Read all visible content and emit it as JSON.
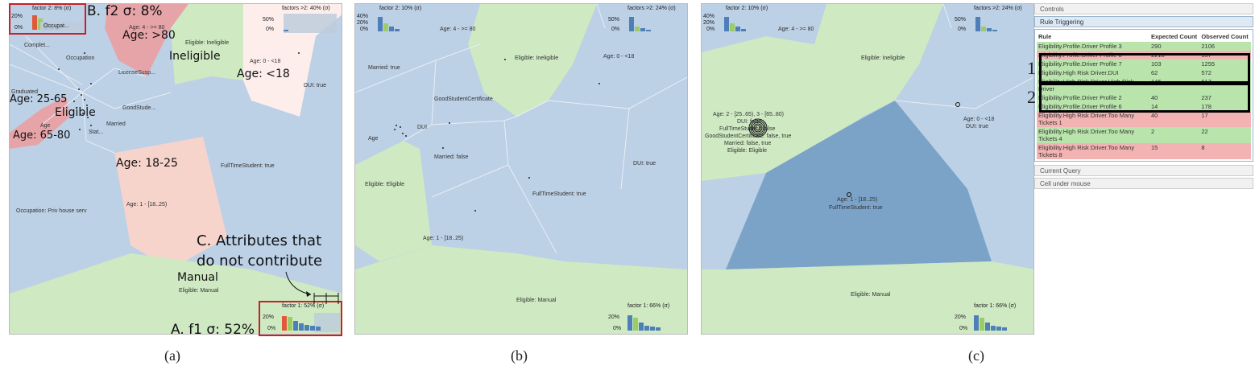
{
  "panel_a": {
    "hist_top_left": {
      "title": "factor 2: 8% (σ)",
      "y_top": "20%",
      "y_bottom": "0%",
      "bars": [
        {
          "color": "#e05a3a",
          "v": 0.9
        },
        {
          "color": "#9ccc65",
          "v": 0.7
        },
        {
          "color": "#4f7fb8",
          "v": 0.5
        },
        {
          "color": "#4f7fb8",
          "v": 0.3
        },
        {
          "color": "#4f7fb8",
          "v": 0.2
        }
      ],
      "label": "Occupat..."
    },
    "hist_top_right": {
      "title": "factors >2: 40% (σ)",
      "y_top": "50%",
      "y_bottom": "0%",
      "bars": [
        {
          "color": "#4f7fb8",
          "v": 0.1
        }
      ]
    },
    "hist_bottom_right": {
      "title": "factor 1: 52% (σ)",
      "y_top": "20%",
      "y_bottom": "0%",
      "bars": [
        {
          "color": "#e05a3a",
          "v": 0.9
        },
        {
          "color": "#9ccc65",
          "v": 0.85
        },
        {
          "color": "#4f7fb8",
          "v": 0.6
        },
        {
          "color": "#4f7fb8",
          "v": 0.45
        },
        {
          "color": "#4f7fb8",
          "v": 0.35
        },
        {
          "color": "#4f7fb8",
          "v": 0.3
        },
        {
          "color": "#4f7fb8",
          "v": 0.25
        }
      ]
    },
    "labels": {
      "occupation": "Occupation",
      "complete": "Complet...",
      "license": "LicenseSusp...",
      "graduated": "Graduated",
      "goodstude": "GoodStude...",
      "married": "Married",
      "stat": "Stat...",
      "age_small": "Age",
      "age_4": "Age: 4 - >= 80",
      "eligible_ineligible": "Eligible: Ineligible",
      "age_0": "Age: 0 - <18",
      "dui_true": "DUI: true",
      "age_1": "Age: 1 - [18..25)",
      "fulltime": "FullTimeStudent: true",
      "occupation_priv": "Occupation: Priv house serv",
      "eligible_manual": "Eligible: Manual"
    },
    "annotations": {
      "b": "B. f2 σ: 8%",
      "age80": "Age: >80",
      "ineligible": "Ineligible",
      "age18": "Age: <18",
      "age2565": "Age: 25-65",
      "eligible": "Eligible",
      "age6580": "Age: 65-80",
      "age1825": "Age: 18-25",
      "c1": "C. Attributes that",
      "c2": "do not contribute",
      "manual": "Manual",
      "a": "A. f1 σ: 52%"
    }
  },
  "panel_b": {
    "hist_top_left": {
      "title": "factor 2: 10% (σ)",
      "y_top": "40%",
      "y_mid": "20%",
      "y_bottom": "0%",
      "bars": [
        {
          "color": "#4f7fb8",
          "v": 0.9
        },
        {
          "color": "#9ccc65",
          "v": 0.5
        },
        {
          "color": "#4f7fb8",
          "v": 0.3
        },
        {
          "color": "#4f7fb8",
          "v": 0.15
        }
      ]
    },
    "hist_top_right": {
      "title": "factors >2: 24% (σ)",
      "y_top": "50%",
      "y_bottom": "0%",
      "bars": [
        {
          "color": "#4f7fb8",
          "v": 0.9
        },
        {
          "color": "#9ccc65",
          "v": 0.3
        },
        {
          "color": "#4f7fb8",
          "v": 0.2
        },
        {
          "color": "#4f7fb8",
          "v": 0.1
        }
      ]
    },
    "hist_bottom_right": {
      "title": "factor 1: 66% (σ)",
      "y_top": "20%",
      "y_bottom": "0%",
      "bars": [
        {
          "color": "#4f7fb8",
          "v": 0.95
        },
        {
          "color": "#9ccc65",
          "v": 0.8
        },
        {
          "color": "#4f7fb8",
          "v": 0.5
        },
        {
          "color": "#4f7fb8",
          "v": 0.3
        },
        {
          "color": "#4f7fb8",
          "v": 0.25
        },
        {
          "color": "#4f7fb8",
          "v": 0.2
        }
      ]
    },
    "labels": {
      "age4": "Age: 4 - >= 80",
      "eligible_ineligible": "Eligible: Ineligible",
      "age0": "Age: 0 - <18",
      "married_true": "Married: true",
      "goodstudent": "GoodStudentCertificate",
      "dui": "DUI",
      "age": "Age",
      "married_false": "Married: false",
      "dui_true": "DUI: true",
      "eligible_eligible": "Eligible: Eligible",
      "fulltime": "FullTimeStudent: true",
      "age1": "Age: 1 - [18..25)",
      "eligible_manual": "Eligible: Manual"
    }
  },
  "panel_c": {
    "hist_top_left": {
      "title": "factor 2: 10% (σ)",
      "y_top": "40%",
      "y_mid": "20%",
      "y_bottom": "0%",
      "bars": [
        {
          "color": "#4f7fb8",
          "v": 0.9
        },
        {
          "color": "#9ccc65",
          "v": 0.5
        },
        {
          "color": "#4f7fb8",
          "v": 0.3
        },
        {
          "color": "#4f7fb8",
          "v": 0.15
        }
      ]
    },
    "hist_top_right": {
      "title": "factors >2: 24% (σ)",
      "y_top": "50%",
      "y_bottom": "0%",
      "bars": [
        {
          "color": "#4f7fb8",
          "v": 0.9
        },
        {
          "color": "#9ccc65",
          "v": 0.3
        },
        {
          "color": "#4f7fb8",
          "v": 0.2
        },
        {
          "color": "#4f7fb8",
          "v": 0.1
        }
      ]
    },
    "hist_bottom_right": {
      "title": "factor 1: 66% (σ)",
      "y_top": "20%",
      "y_bottom": "0%",
      "bars": [
        {
          "color": "#4f7fb8",
          "v": 0.95
        },
        {
          "color": "#9ccc65",
          "v": 0.8
        },
        {
          "color": "#4f7fb8",
          "v": 0.5
        },
        {
          "color": "#4f7fb8",
          "v": 0.3
        },
        {
          "color": "#4f7fb8",
          "v": 0.25
        },
        {
          "color": "#4f7fb8",
          "v": 0.2
        }
      ]
    },
    "labels": {
      "age4": "Age: 4 - >= 80",
      "eligible_ineligible": "Eligible: Ineligible",
      "age0": "Age: 0 - <18",
      "dui_true": "DUI: true",
      "cluster1": "Age: 2 - [25..65), 3 - [65..80)",
      "cluster2": "DUI: false",
      "cluster3": "FullTimeStudent: false",
      "cluster4": "GoodStudentCertificate: false, true",
      "cluster5": "Married: false, true",
      "cluster6": "Eligible: Eligible",
      "age1": "Age: 1 - [18..25)",
      "fulltime": "FullTimeStudent: true",
      "eligible_manual": "Eligible: Manual"
    }
  },
  "captions": {
    "a": "(a)",
    "b": "(b)",
    "c": "(c)"
  },
  "controls": {
    "title": "Controls",
    "rule_triggering": "Rule Triggering",
    "col_rule": "Rule",
    "col_expected": "Expected Count",
    "col_observed": "Observed Count",
    "rows": [
      {
        "rule": "Eligibility.Profile.Driver Profile 3",
        "expected": "290",
        "observed": "2106",
        "status": "g"
      },
      {
        "rule": "Eligibility.Profile.Driver Profile 8",
        "expected": "2218",
        "observed": "557",
        "status": "r"
      },
      {
        "rule": "Eligibility.Profile.Driver Profile 7",
        "expected": "103",
        "observed": "1255",
        "status": "g"
      },
      {
        "rule": "Eligibility.High Risk Driver.DUI",
        "expected": "62",
        "observed": "572",
        "status": "g"
      },
      {
        "rule": "Eligibility.High Risk Driver.High Risk Driver",
        "expected": "146",
        "observed": "617",
        "status": "g"
      },
      {
        "rule": "Eligibility.Profile.Driver Profile 2",
        "expected": "40",
        "observed": "237",
        "status": "g"
      },
      {
        "rule": "Eligibility.Profile.Driver Profile 6",
        "expected": "14",
        "observed": "178",
        "status": "g"
      },
      {
        "rule": "Eligibility.High Risk Driver.Too Many Tickets 1",
        "expected": "40",
        "observed": "17",
        "status": "r"
      },
      {
        "rule": "Eligibility.High Risk Driver.Too Many Tickets 4",
        "expected": "2",
        "observed": "22",
        "status": "g"
      },
      {
        "rule": "Eligibility.High Risk Driver.Too Many Tickets 8",
        "expected": "15",
        "observed": "8",
        "status": "r"
      }
    ],
    "current_query": "Current Query",
    "cell_under_mouse": "Cell under mouse",
    "marker1": "1",
    "marker2": "2"
  }
}
